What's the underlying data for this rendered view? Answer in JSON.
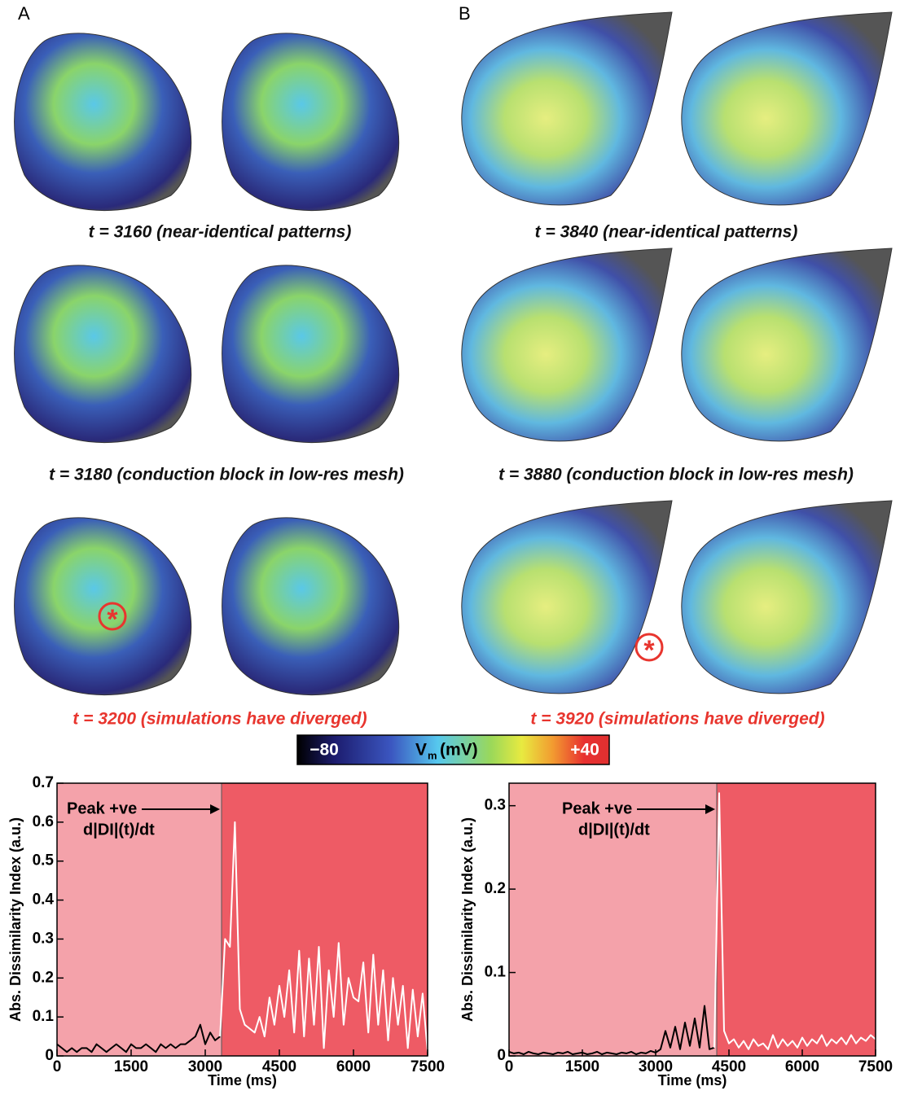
{
  "panels": [
    {
      "label": "A",
      "captions": [
        "t = 3160 (near-identical patterns)",
        "t = 3180 (conduction block in low-res mesh)",
        "t = 3200 (simulations have diverged)"
      ]
    },
    {
      "label": "B",
      "captions": [
        "t = 3840 (near-identical patterns)",
        "t = 3880 (conduction block in low-res mesh)",
        "t = 3920 (simulations have diverged)"
      ]
    }
  ],
  "colorbar": {
    "min_label": "−80",
    "title": "V",
    "title_sub": "m",
    "title_unit": "(mV)",
    "max_label": "+40"
  },
  "chart_data": [
    {
      "type": "line",
      "x_label": "Time (ms)",
      "y_label": "Abs. Dissimilarity Index (a.u.)",
      "annotation": [
        "Peak +ve",
        "d|DI|(t)/dt"
      ],
      "xlim": [
        0,
        7500
      ],
      "xticks": [
        0,
        1500,
        3000,
        4500,
        6000,
        7500
      ],
      "ylim": [
        0,
        0.7
      ],
      "yticks": [
        0,
        0.1,
        0.2,
        0.3,
        0.4,
        0.5,
        0.6,
        0.7
      ],
      "regions": [
        {
          "start": 0,
          "end": 3330,
          "color": "#f4a2aa"
        },
        {
          "start": 3330,
          "end": 7500,
          "color": "#ee5b65"
        }
      ],
      "series": [
        {
          "color": "#000000",
          "x": [
            0,
            100,
            200,
            300,
            400,
            500,
            600,
            700,
            800,
            900,
            1000,
            1100,
            1200,
            1300,
            1400,
            1500,
            1600,
            1700,
            1800,
            1900,
            2000,
            2100,
            2200,
            2300,
            2400,
            2500,
            2600,
            2700,
            2800,
            2900,
            3000,
            3100,
            3200,
            3300
          ],
          "values": [
            0.03,
            0.02,
            0.01,
            0.02,
            0.01,
            0.02,
            0.02,
            0.01,
            0.03,
            0.02,
            0.01,
            0.02,
            0.03,
            0.02,
            0.01,
            0.03,
            0.02,
            0.02,
            0.03,
            0.02,
            0.01,
            0.03,
            0.02,
            0.03,
            0.02,
            0.03,
            0.03,
            0.04,
            0.05,
            0.08,
            0.03,
            0.06,
            0.04,
            0.05
          ]
        },
        {
          "color": "#ffffff",
          "x": [
            3300,
            3400,
            3500,
            3600,
            3700,
            3800,
            3900,
            4000,
            4100,
            4200,
            4300,
            4400,
            4500,
            4600,
            4700,
            4800,
            4900,
            5000,
            5100,
            5200,
            5300,
            5400,
            5500,
            5600,
            5700,
            5800,
            5900,
            6000,
            6100,
            6200,
            6300,
            6400,
            6500,
            6600,
            6700,
            6800,
            6900,
            7000,
            7100,
            7200,
            7300,
            7400,
            7500
          ],
          "values": [
            0.05,
            0.3,
            0.28,
            0.6,
            0.12,
            0.08,
            0.07,
            0.06,
            0.1,
            0.05,
            0.15,
            0.08,
            0.18,
            0.1,
            0.22,
            0.06,
            0.27,
            0.05,
            0.25,
            0.08,
            0.28,
            0.02,
            0.22,
            0.1,
            0.29,
            0.08,
            0.2,
            0.15,
            0.14,
            0.24,
            0.06,
            0.26,
            0.08,
            0.22,
            0.04,
            0.2,
            0.08,
            0.18,
            0.02,
            0.17,
            0.05,
            0.16,
            0.01
          ]
        }
      ]
    },
    {
      "type": "line",
      "x_label": "Time (ms)",
      "y_label": "Abs. Dissimilarity Index (a.u.)",
      "annotation": [
        "Peak +ve",
        "d|DI|(t)/dt"
      ],
      "xlim": [
        0,
        7500
      ],
      "xticks": [
        0,
        1500,
        3000,
        4500,
        6000,
        7500
      ],
      "ylim": [
        0,
        0.327
      ],
      "yticks": [
        0,
        0.1,
        0.2,
        0.3
      ],
      "regions": [
        {
          "start": 0,
          "end": 4250,
          "color": "#f4a2aa"
        },
        {
          "start": 4250,
          "end": 7500,
          "color": "#ee5b65"
        }
      ],
      "series": [
        {
          "color": "#000000",
          "x": [
            0,
            100,
            200,
            300,
            400,
            500,
            600,
            700,
            800,
            900,
            1000,
            1100,
            1200,
            1300,
            1400,
            1500,
            1600,
            1700,
            1800,
            1900,
            2000,
            2100,
            2200,
            2300,
            2400,
            2500,
            2600,
            2700,
            2800,
            2900,
            3000,
            3100,
            3200,
            3300,
            3400,
            3500,
            3600,
            3700,
            3800,
            3900,
            4000,
            4100,
            4200
          ],
          "values": [
            0.005,
            0.003,
            0.004,
            0.002,
            0.005,
            0.003,
            0.002,
            0.004,
            0.003,
            0.002,
            0.004,
            0.003,
            0.005,
            0.002,
            0.003,
            0.004,
            0.002,
            0.003,
            0.005,
            0.002,
            0.004,
            0.003,
            0.002,
            0.004,
            0.003,
            0.005,
            0.002,
            0.004,
            0.003,
            0.006,
            0.004,
            0.008,
            0.03,
            0.01,
            0.035,
            0.008,
            0.04,
            0.012,
            0.045,
            0.01,
            0.06,
            0.008,
            0.01
          ]
        },
        {
          "color": "#ffffff",
          "x": [
            4200,
            4300,
            4400,
            4500,
            4600,
            4700,
            4800,
            4900,
            5000,
            5100,
            5200,
            5300,
            5400,
            5500,
            5600,
            5700,
            5800,
            5900,
            6000,
            6100,
            6200,
            6300,
            6400,
            6500,
            6600,
            6700,
            6800,
            6900,
            7000,
            7100,
            7200,
            7300,
            7400,
            7500
          ],
          "values": [
            0.01,
            0.315,
            0.03,
            0.015,
            0.02,
            0.01,
            0.018,
            0.008,
            0.02,
            0.012,
            0.015,
            0.008,
            0.025,
            0.01,
            0.02,
            0.012,
            0.018,
            0.01,
            0.022,
            0.012,
            0.02,
            0.015,
            0.025,
            0.012,
            0.02,
            0.015,
            0.022,
            0.014,
            0.025,
            0.015,
            0.022,
            0.018,
            0.025,
            0.02
          ]
        }
      ]
    }
  ]
}
